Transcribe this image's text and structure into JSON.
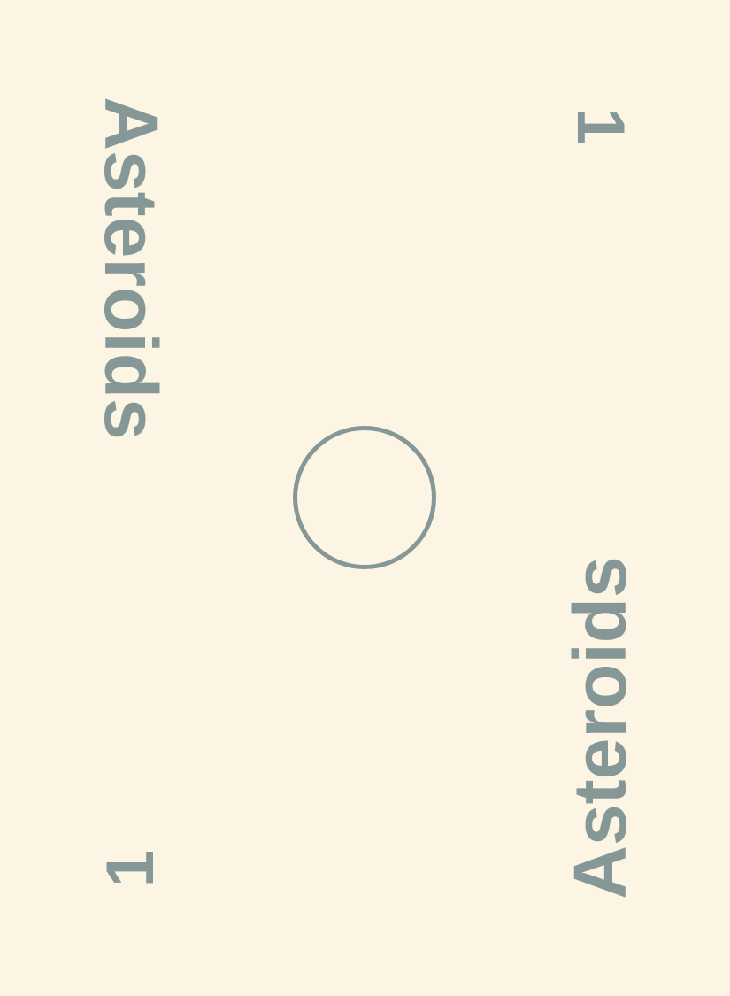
{
  "card": {
    "title_left": "Asteroids",
    "title_right": "Asteroids",
    "count_top": "1",
    "count_bottom": "1",
    "center_symbol": "ring-icon"
  },
  "colors": {
    "background": "#fdf5e3",
    "ink": "#869797"
  }
}
